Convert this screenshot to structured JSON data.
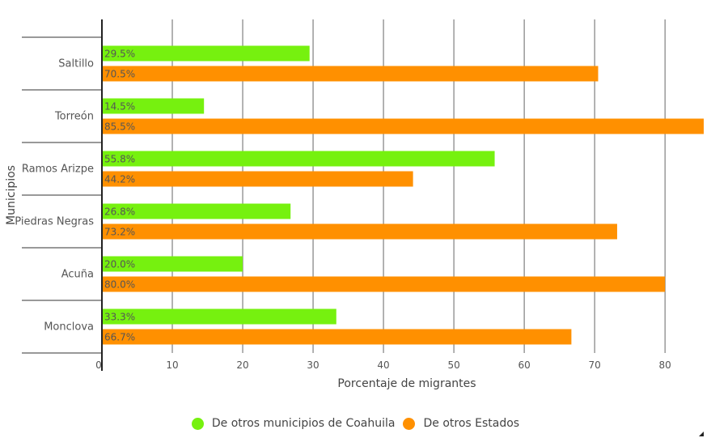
{
  "chart_data": {
    "type": "bar",
    "orientation": "horizontal",
    "categories": [
      "Saltillo",
      "Torreón",
      "Ramos Arizpe",
      "Piedras Negras",
      "Acuña",
      "Monclova"
    ],
    "series": [
      {
        "name": "De otros municipios de Coahuila",
        "color": "#76f10f",
        "values": [
          29.5,
          14.5,
          55.8,
          26.8,
          20.0,
          33.3
        ],
        "labels": [
          "29.5%",
          "14.5%",
          "55.8%",
          "26.8%",
          "20.0%",
          "33.3%"
        ]
      },
      {
        "name": "De otros Estados",
        "color": "#ff9000",
        "values": [
          70.5,
          85.5,
          44.2,
          73.2,
          80.0,
          66.7
        ],
        "labels": [
          "70.5%",
          "85.5%",
          "44.2%",
          "73.2%",
          "80.0%",
          "66.7%"
        ]
      }
    ],
    "xlabel": "Porcentaje de migrantes",
    "ylabel": "Municipios",
    "xticks": [
      0,
      10,
      20,
      30,
      40,
      50,
      60,
      70,
      80
    ],
    "xlim": [
      0,
      85.5
    ],
    "grid": true,
    "legend_position": "bottom"
  }
}
